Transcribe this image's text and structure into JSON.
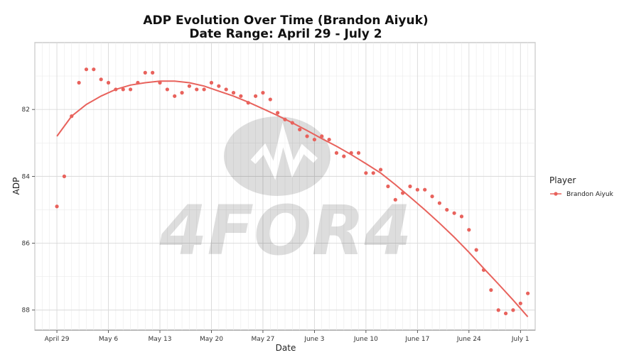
{
  "chart_data": {
    "type": "scatter",
    "title": "ADP Evolution Over Time (Brandon Aiyuk)",
    "subtitle": "Date Range: April 29 - July  2",
    "xlabel": "Date",
    "ylabel": "ADP",
    "x_range_days": [
      -3,
      65
    ],
    "ylim": [
      80.0,
      88.6
    ],
    "y_reversed": true,
    "y_ticks": [
      82,
      84,
      86,
      88
    ],
    "x_ticks": [
      {
        "day": 0,
        "label": "April 29"
      },
      {
        "day": 7,
        "label": "May  6"
      },
      {
        "day": 14,
        "label": "May 13"
      },
      {
        "day": 21,
        "label": "May 20"
      },
      {
        "day": 28,
        "label": "May 27"
      },
      {
        "day": 35,
        "label": "June  3"
      },
      {
        "day": 42,
        "label": "June 10"
      },
      {
        "day": 49,
        "label": "June 17"
      },
      {
        "day": 56,
        "label": "June 24"
      },
      {
        "day": 63,
        "label": "July  1"
      }
    ],
    "grid": true,
    "legend": {
      "title": "Player",
      "position": "right"
    },
    "series": [
      {
        "name": "Brandon Aiyuk",
        "color": "#E8625C",
        "points": [
          [
            0,
            84.9
          ],
          [
            1,
            84.0
          ],
          [
            2,
            82.2
          ],
          [
            3,
            81.2
          ],
          [
            4,
            80.8
          ],
          [
            5,
            80.8
          ],
          [
            6,
            81.1
          ],
          [
            7,
            81.2
          ],
          [
            8,
            81.4
          ],
          [
            9,
            81.4
          ],
          [
            10,
            81.4
          ],
          [
            11,
            81.2
          ],
          [
            12,
            80.9
          ],
          [
            13,
            80.9
          ],
          [
            14,
            81.2
          ],
          [
            15,
            81.4
          ],
          [
            16,
            81.6
          ],
          [
            17,
            81.5
          ],
          [
            18,
            81.3
          ],
          [
            19,
            81.4
          ],
          [
            20,
            81.4
          ],
          [
            21,
            81.2
          ],
          [
            22,
            81.3
          ],
          [
            23,
            81.4
          ],
          [
            24,
            81.5
          ],
          [
            25,
            81.6
          ],
          [
            26,
            81.8
          ],
          [
            27,
            81.6
          ],
          [
            28,
            81.5
          ],
          [
            29,
            81.7
          ],
          [
            30,
            82.1
          ],
          [
            31,
            82.3
          ],
          [
            32,
            82.4
          ],
          [
            33,
            82.6
          ],
          [
            34,
            82.8
          ],
          [
            35,
            82.9
          ],
          [
            36,
            82.8
          ],
          [
            37,
            82.9
          ],
          [
            38,
            83.3
          ],
          [
            39,
            83.4
          ],
          [
            40,
            83.3
          ],
          [
            41,
            83.3
          ],
          [
            42,
            83.9
          ],
          [
            43,
            83.9
          ],
          [
            44,
            83.8
          ],
          [
            45,
            84.3
          ],
          [
            46,
            84.7
          ],
          [
            47,
            84.5
          ],
          [
            48,
            84.3
          ],
          [
            49,
            84.4
          ],
          [
            50,
            84.4
          ],
          [
            51,
            84.6
          ],
          [
            52,
            84.8
          ],
          [
            53,
            85.0
          ],
          [
            54,
            85.1
          ],
          [
            55,
            85.2
          ],
          [
            56,
            85.6
          ],
          [
            57,
            86.2
          ],
          [
            58,
            86.8
          ],
          [
            59,
            87.4
          ],
          [
            60,
            88.0
          ],
          [
            61,
            88.1
          ],
          [
            62,
            88.0
          ],
          [
            63,
            87.8
          ],
          [
            64,
            87.5
          ]
        ],
        "trend": [
          [
            0,
            82.8
          ],
          [
            2,
            82.2
          ],
          [
            4,
            81.85
          ],
          [
            6,
            81.6
          ],
          [
            8,
            81.4
          ],
          [
            10,
            81.27
          ],
          [
            12,
            81.2
          ],
          [
            14,
            81.15
          ],
          [
            16,
            81.15
          ],
          [
            18,
            81.2
          ],
          [
            20,
            81.3
          ],
          [
            22,
            81.45
          ],
          [
            24,
            81.6
          ],
          [
            26,
            81.78
          ],
          [
            28,
            81.98
          ],
          [
            30,
            82.18
          ],
          [
            32,
            82.4
          ],
          [
            34,
            82.63
          ],
          [
            36,
            82.87
          ],
          [
            38,
            83.1
          ],
          [
            40,
            83.35
          ],
          [
            42,
            83.62
          ],
          [
            44,
            83.9
          ],
          [
            46,
            84.25
          ],
          [
            48,
            84.62
          ],
          [
            50,
            85.0
          ],
          [
            52,
            85.4
          ],
          [
            54,
            85.82
          ],
          [
            56,
            86.27
          ],
          [
            58,
            86.75
          ],
          [
            60,
            87.22
          ],
          [
            62,
            87.7
          ],
          [
            64,
            88.2
          ]
        ]
      }
    ]
  },
  "watermark": {
    "text": "4FOR4"
  }
}
